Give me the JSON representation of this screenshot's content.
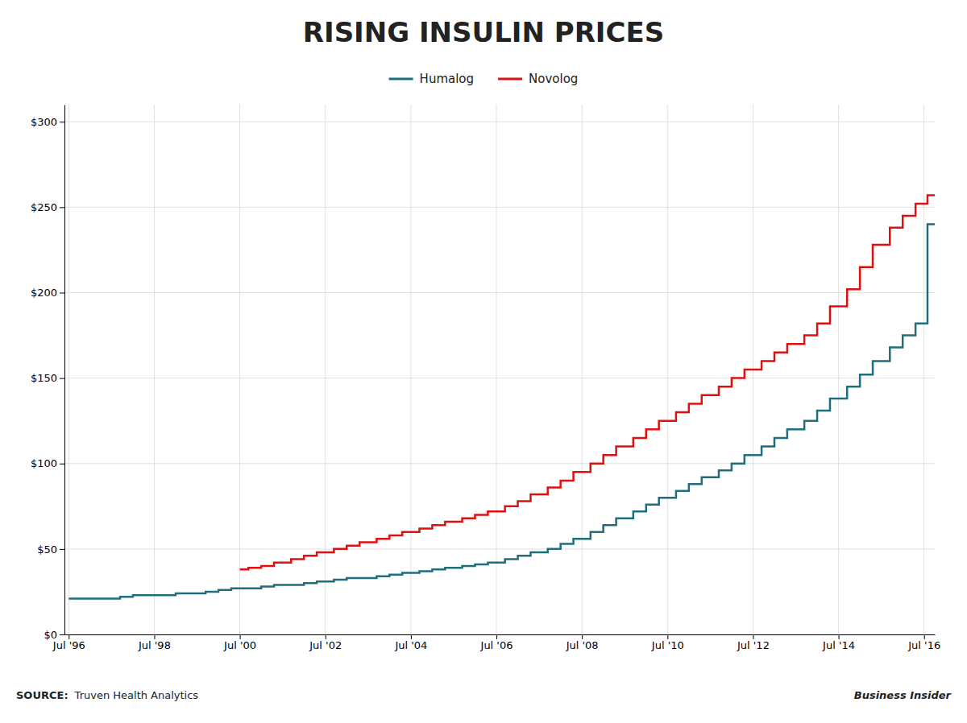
{
  "chart_data": {
    "type": "line",
    "title": "RISING INSULIN PRICES",
    "annotations": [
      "SOURCE:",
      "Truven Health Analytics",
      "Business Insider"
    ],
    "line_style": "step",
    "grid": true,
    "legend": "top",
    "xlim": [
      1996.4,
      2016.75
    ],
    "xticks": [
      {
        "value": 1996.5,
        "label": "Jul '96"
      },
      {
        "value": 1998.5,
        "label": "Jul '98"
      },
      {
        "value": 2000.5,
        "label": "Jul '00"
      },
      {
        "value": 2002.5,
        "label": "Jul '02"
      },
      {
        "value": 2004.5,
        "label": "Jul '04"
      },
      {
        "value": 2006.5,
        "label": "Jul '06"
      },
      {
        "value": 2008.5,
        "label": "Jul '08"
      },
      {
        "value": 2010.5,
        "label": "Jul '10"
      },
      {
        "value": 2012.5,
        "label": "Jul '12"
      },
      {
        "value": 2014.5,
        "label": "Jul '14"
      },
      {
        "value": 2016.5,
        "label": "Jul '16"
      }
    ],
    "ylim": [
      0,
      310
    ],
    "yticks": [
      {
        "value": 0,
        "label": "$0"
      },
      {
        "value": 50,
        "label": "$50"
      },
      {
        "value": 100,
        "label": "$100"
      },
      {
        "value": 150,
        "label": "$150"
      },
      {
        "value": 200,
        "label": "$200"
      },
      {
        "value": 250,
        "label": "$250"
      },
      {
        "value": 300,
        "label": "$300"
      }
    ],
    "series": [
      {
        "name": "Humalog",
        "color": "#1e6e7c",
        "x": [
          1996.5,
          1997.0,
          1997.3,
          1997.7,
          1998.0,
          1998.3,
          1998.7,
          1999.0,
          1999.3,
          1999.7,
          2000.0,
          2000.3,
          2000.7,
          2001.0,
          2001.3,
          2001.7,
          2002.0,
          2002.3,
          2002.7,
          2003.0,
          2003.3,
          2003.7,
          2004.0,
          2004.3,
          2004.7,
          2005.0,
          2005.3,
          2005.7,
          2006.0,
          2006.3,
          2006.7,
          2007.0,
          2007.3,
          2007.7,
          2008.0,
          2008.3,
          2008.7,
          2009.0,
          2009.3,
          2009.7,
          2010.0,
          2010.3,
          2010.7,
          2011.0,
          2011.3,
          2011.7,
          2012.0,
          2012.3,
          2012.7,
          2013.0,
          2013.3,
          2013.7,
          2014.0,
          2014.3,
          2014.7,
          2015.0,
          2015.3,
          2015.7,
          2016.0,
          2016.3,
          2016.58
        ],
        "values": [
          21,
          21,
          21,
          22,
          23,
          23,
          23,
          24,
          24,
          25,
          26,
          27,
          27,
          28,
          29,
          29,
          30,
          31,
          32,
          33,
          33,
          34,
          35,
          36,
          37,
          38,
          39,
          40,
          41,
          42,
          44,
          46,
          48,
          50,
          53,
          56,
          60,
          64,
          68,
          72,
          76,
          80,
          84,
          88,
          92,
          96,
          100,
          105,
          110,
          115,
          120,
          125,
          131,
          138,
          145,
          152,
          160,
          168,
          175,
          182,
          240
        ]
      },
      {
        "name": "Novolog",
        "color": "#e01010",
        "x": [
          2000.5,
          2000.7,
          2001.0,
          2001.3,
          2001.7,
          2002.0,
          2002.3,
          2002.7,
          2003.0,
          2003.3,
          2003.7,
          2004.0,
          2004.3,
          2004.7,
          2005.0,
          2005.3,
          2005.7,
          2006.0,
          2006.3,
          2006.7,
          2007.0,
          2007.3,
          2007.7,
          2008.0,
          2008.3,
          2008.7,
          2009.0,
          2009.3,
          2009.7,
          2010.0,
          2010.3,
          2010.7,
          2011.0,
          2011.3,
          2011.7,
          2012.0,
          2012.3,
          2012.7,
          2013.0,
          2013.3,
          2013.7,
          2014.0,
          2014.3,
          2014.7,
          2015.0,
          2015.3,
          2015.7,
          2016.0,
          2016.3,
          2016.58
        ],
        "values": [
          38,
          39,
          40,
          42,
          44,
          46,
          48,
          50,
          52,
          54,
          56,
          58,
          60,
          62,
          64,
          66,
          68,
          70,
          72,
          75,
          78,
          82,
          86,
          90,
          95,
          100,
          105,
          110,
          115,
          120,
          125,
          130,
          135,
          140,
          145,
          150,
          155,
          160,
          165,
          170,
          175,
          182,
          192,
          202,
          215,
          228,
          238,
          245,
          252,
          257
        ]
      }
    ]
  }
}
